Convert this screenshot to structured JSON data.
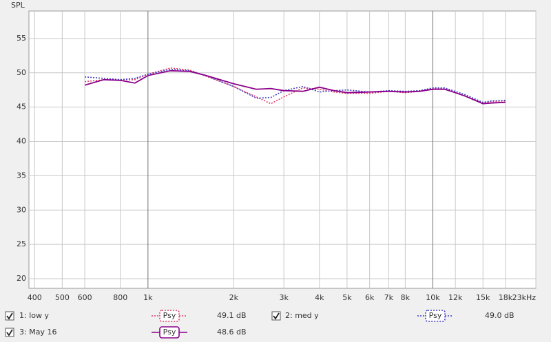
{
  "chart_data": {
    "type": "line",
    "y_label": "SPL",
    "log_x": true,
    "grid": true,
    "xlim": [
      382,
      23000
    ],
    "ylim": [
      18.6,
      59
    ],
    "xticks": [
      400,
      500,
      600,
      800,
      {
        "value": 1000,
        "label": "1k"
      },
      {
        "value": 2000,
        "label": "2k"
      },
      {
        "value": 3000,
        "label": "3k"
      },
      {
        "value": 4000,
        "label": "4k"
      },
      {
        "value": 5000,
        "label": "5k"
      },
      {
        "value": 6000,
        "label": "6k"
      },
      {
        "value": 7000,
        "label": "7k"
      },
      {
        "value": 8000,
        "label": "8k"
      },
      {
        "value": 10000,
        "label": "10k"
      },
      {
        "value": 12000,
        "label": "12k"
      },
      {
        "value": 15000,
        "label": "15k"
      },
      {
        "value": 18000,
        "label": "18k"
      },
      {
        "value": 23000,
        "label": "23kHz"
      }
    ],
    "yticks": [
      20,
      25,
      30,
      35,
      40,
      45,
      50,
      55
    ],
    "x": [
      600,
      700,
      800,
      900,
      1000,
      1200,
      1400,
      1600,
      2000,
      2400,
      2700,
      3000,
      3500,
      4000,
      4500,
      5000,
      6000,
      7000,
      8000,
      9000,
      10000,
      11000,
      12000,
      13000,
      15000,
      16000,
      18000
    ],
    "series": [
      {
        "name": "1: low y",
        "color": "#e0406a",
        "dashed": true,
        "smoothing": "Psy",
        "level_label": "49.1 dB",
        "values": [
          48.7,
          49.0,
          49.0,
          49.0,
          49.8,
          50.7,
          50.4,
          49.5,
          48.0,
          46.5,
          45.5,
          46.5,
          47.8,
          47.6,
          47.2,
          47.0,
          47.0,
          47.3,
          47.1,
          47.3,
          47.7,
          47.7,
          47.1,
          46.6,
          45.6,
          45.8,
          45.9
        ]
      },
      {
        "name": "2: med y",
        "color": "#4040c0",
        "dashed": true,
        "smoothing": "Psy",
        "level_label": "49.0 dB",
        "values": [
          49.4,
          49.2,
          49.0,
          49.2,
          49.8,
          50.5,
          50.3,
          49.6,
          48.0,
          46.3,
          46.4,
          47.4,
          48.0,
          47.2,
          47.4,
          47.5,
          47.2,
          47.4,
          47.3,
          47.4,
          47.8,
          47.8,
          47.3,
          46.8,
          45.7,
          45.9,
          46.0
        ]
      },
      {
        "name": "3: May 16",
        "color": "#8b008b",
        "dashed": false,
        "smoothing": "Psy",
        "level_label": "48.6 dB",
        "values": [
          48.2,
          49.0,
          48.9,
          48.5,
          49.6,
          50.3,
          50.2,
          49.6,
          48.4,
          47.6,
          47.7,
          47.4,
          47.3,
          47.9,
          47.4,
          47.1,
          47.2,
          47.3,
          47.2,
          47.3,
          47.6,
          47.6,
          47.1,
          46.6,
          45.5,
          45.6,
          45.7
        ]
      }
    ]
  }
}
